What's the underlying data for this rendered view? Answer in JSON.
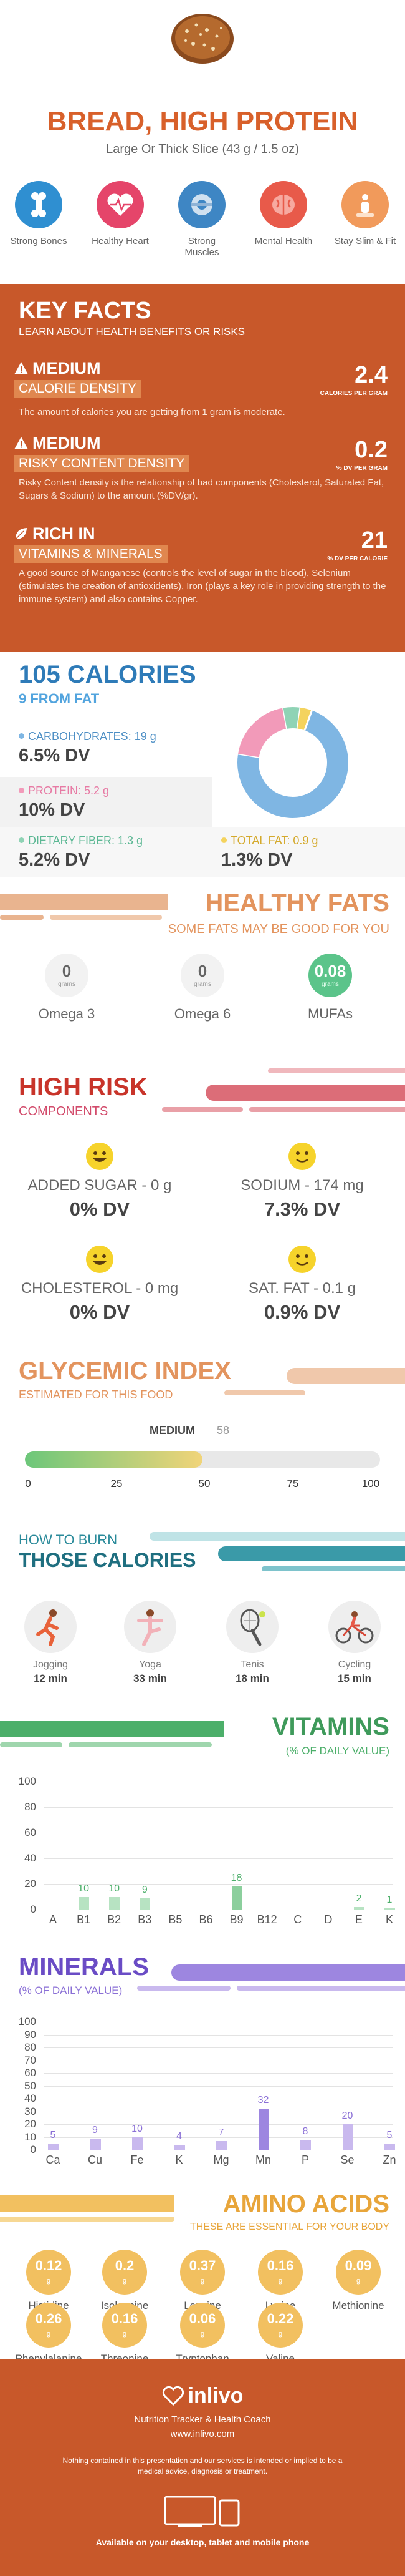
{
  "header": {
    "title": "BREAD, HIGH PROTEIN",
    "subtitle": "Large Or Thick Slice (43 g / 1.5 oz)",
    "benefits": [
      {
        "label": "Strong Bones",
        "icon": "bone-icon",
        "color": "#2f8fd1"
      },
      {
        "label": "Healthy Heart",
        "icon": "heart-icon",
        "color": "#e5456a"
      },
      {
        "label": "Strong Muscles",
        "icon": "muscle-icon",
        "color": "#3e86c4"
      },
      {
        "label": "Mental Health",
        "icon": "brain-icon",
        "color": "#e85a4a"
      },
      {
        "label": "Stay Slim & Fit",
        "icon": "scale-icon",
        "color": "#f19a5b"
      }
    ]
  },
  "key_facts": {
    "title": "KEY FACTS",
    "subtitle": "LEARN ABOUT HEALTH BENEFITS OR RISKS",
    "items": [
      {
        "level": "MEDIUM",
        "label": "CALORIE DENSITY",
        "value": "2.4",
        "unit": "CALORIES PER GRAM",
        "desc": "The amount of calories you are getting from 1 gram is moderate."
      },
      {
        "level": "MEDIUM",
        "label": "RISKY CONTENT DENSITY",
        "value": "0.2",
        "unit": "% DV PER GRAM",
        "desc": "Risky Content density is the relationship of bad components (Cholesterol, Saturated Fat, Sugars & Sodium) to the amount (%DV/gr)."
      },
      {
        "level": "RICH IN",
        "label": "VITAMINS & MINERALS",
        "value": "21",
        "unit": "% DV PER CALORIE",
        "desc": "A good source of Manganese (controls the level of sugar in the blood), Selenium (stimulates the creation of antioxidents), Iron (plays a key role in providing strength to the immune system) and also contains Copper."
      }
    ]
  },
  "calories": {
    "title": "105 CALORIES",
    "from_fat": "9 FROM FAT",
    "nutrients": [
      {
        "label": "CARBOHYDRATES: 19 g",
        "dv": "6.5% DV",
        "color": "#7fb6e3",
        "grams": 19
      },
      {
        "label": "PROTEIN: 5.2 g",
        "dv": "10% DV",
        "color": "#f29ab9",
        "grams": 5.2
      },
      {
        "label": "DIETARY FIBER: 1.3 g",
        "dv": "5.2% DV",
        "color": "#8fd3b5",
        "grams": 1.3
      },
      {
        "label": "TOTAL FAT: 0.9 g",
        "dv": "1.3% DV",
        "color": "#f4d35e",
        "grams": 0.9
      }
    ]
  },
  "healthy_fats": {
    "title": "HEALTHY FATS",
    "subtitle": "SOME FATS MAY BE GOOD FOR YOU",
    "unit": "grams",
    "items": [
      {
        "value": "0",
        "label": "Omega 3"
      },
      {
        "value": "0",
        "label": "Omega 6"
      },
      {
        "value": "0.08",
        "label": "MUFAs"
      }
    ]
  },
  "high_risk": {
    "title": "HIGH RISK",
    "subtitle": "COMPONENTS",
    "items": [
      {
        "label": "ADDED SUGAR - 0 g",
        "dv": "0% DV"
      },
      {
        "label": "SODIUM - 174 mg",
        "dv": "7.3% DV"
      },
      {
        "label": "CHOLESTEROL - 0 mg",
        "dv": "0% DV"
      },
      {
        "label": "SAT. FAT - 0.1 g",
        "dv": "0.9% DV"
      }
    ]
  },
  "glycemic": {
    "title": "GLYCEMIC INDEX",
    "subtitle": "ESTIMATED FOR THIS FOOD",
    "level": "MEDIUM",
    "value": "58",
    "ticks": [
      "0",
      "25",
      "50",
      "75",
      "100"
    ],
    "fraction": 0.5
  },
  "burn": {
    "title_top": "HOW TO BURN",
    "title_bottom": "THOSE CALORIES",
    "activities": [
      {
        "name": "Jogging",
        "time": "12 min",
        "icon": "jogging-icon"
      },
      {
        "name": "Yoga",
        "time": "33 min",
        "icon": "yoga-icon"
      },
      {
        "name": "Tenis",
        "time": "18 min",
        "icon": "tennis-icon"
      },
      {
        "name": "Cycling",
        "time": "15 min",
        "icon": "cycling-icon"
      }
    ]
  },
  "chart_data": [
    {
      "type": "bar",
      "title": "VITAMINS",
      "subtitle": "(% OF DAILY VALUE)",
      "categories": [
        "A",
        "B1",
        "B2",
        "B3",
        "B5",
        "B6",
        "B9",
        "B12",
        "C",
        "D",
        "E",
        "K"
      ],
      "values": [
        0,
        10,
        10,
        9,
        0,
        0,
        18,
        0,
        0,
        0,
        2,
        1
      ],
      "labels": [
        "",
        "10",
        "10",
        "9",
        "",
        "",
        "18",
        "",
        "",
        "",
        "2",
        "1"
      ],
      "ylim": [
        0,
        100
      ],
      "yticks": [
        "0",
        "20",
        "40",
        "60",
        "80",
        "100"
      ],
      "color": "#b7e3c2",
      "highlight_color": "#8ccf9d",
      "label_color": "#4caf6a"
    },
    {
      "type": "bar",
      "title": "MINERALS",
      "subtitle": "(% OF DAILY VALUE)",
      "categories": [
        "Ca",
        "Cu",
        "Fe",
        "K",
        "Mg",
        "Mn",
        "P",
        "Se",
        "Zn"
      ],
      "values": [
        5,
        9,
        10,
        4,
        7,
        32,
        8,
        20,
        5
      ],
      "labels": [
        "5",
        "9",
        "10",
        "4",
        "7",
        "32",
        "8",
        "20",
        "5"
      ],
      "ylim": [
        0,
        100
      ],
      "yticks": [
        "0",
        "10",
        "20",
        "30",
        "40",
        "50",
        "60",
        "70",
        "80",
        "90",
        "100"
      ],
      "color": "#c9b9ee",
      "highlight_color": "#9d86e0",
      "label_color": "#8a6fd6"
    }
  ],
  "amino": {
    "title": "AMINO ACIDS",
    "subtitle": "THESE ARE ESSENTIAL FOR YOUR BODY",
    "unit": "g",
    "items": [
      {
        "value": "0.12",
        "name": "Histidine"
      },
      {
        "value": "0.2",
        "name": "Isoleucine"
      },
      {
        "value": "0.37",
        "name": "Leucine"
      },
      {
        "value": "0.16",
        "name": "Lysine"
      },
      {
        "value": "0.09",
        "name": "Methionine"
      },
      {
        "value": "0.26",
        "name": "Phenylalanine"
      },
      {
        "value": "0.16",
        "name": "Threonine"
      },
      {
        "value": "0.06",
        "name": "Tryptophan"
      },
      {
        "value": "0.22",
        "name": "Valine"
      }
    ]
  },
  "footer": {
    "brand": "inlivo",
    "tagline": "Nutrition Tracker & Health Coach",
    "url": "www.inlivo.com",
    "disclaimer": "Nothing contained in this presentation and our services is intended or implied to be a medical advice, diagnosis or treatment.",
    "devices": "Available on your desktop, tablet and mobile phone"
  }
}
